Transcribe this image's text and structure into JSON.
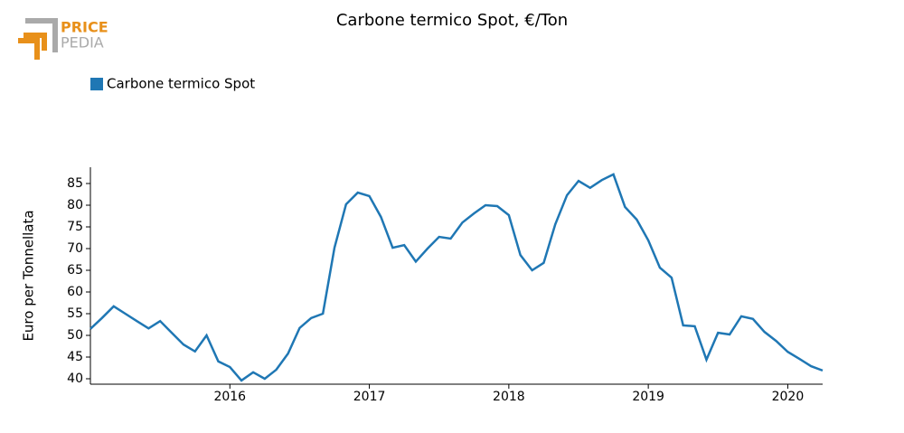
{
  "logo": {
    "top": "PRICE",
    "bottom": "PEDIA"
  },
  "chart_data": {
    "type": "line",
    "title": "Carbone termico Spot, €/Ton",
    "y_label": "Euro per Tonnellata",
    "x": [
      2015,
      2015.083,
      2015.167,
      2015.25,
      2015.333,
      2015.417,
      2015.5,
      2015.583,
      2015.667,
      2015.75,
      2015.833,
      2015.917,
      2016,
      2016.083,
      2016.167,
      2016.25,
      2016.333,
      2016.417,
      2016.5,
      2016.583,
      2016.667,
      2016.75,
      2016.833,
      2016.917,
      2017,
      2017.083,
      2017.167,
      2017.25,
      2017.333,
      2017.417,
      2017.5,
      2017.583,
      2017.667,
      2017.75,
      2017.833,
      2017.917,
      2018,
      2018.083,
      2018.167,
      2018.25,
      2018.333,
      2018.417,
      2018.5,
      2018.583,
      2018.667,
      2018.75,
      2018.833,
      2018.917,
      2019,
      2019.083,
      2019.167,
      2019.25,
      2019.333,
      2019.417,
      2019.5,
      2019.583,
      2019.667,
      2019.75,
      2019.833,
      2019.917,
      2020,
      2020.083,
      2020.167,
      2020.25
    ],
    "series": [
      {
        "name": "Carbone termico Spot",
        "color": "#1f77b4",
        "values": [
          51.5,
          54,
          56.7,
          55,
          53.3,
          51.6,
          53.3,
          50.6,
          47.9,
          46.3,
          50,
          44,
          42.7,
          39.6,
          41.5,
          40,
          42.1,
          45.8,
          51.7,
          54,
          55,
          70.2,
          80.2,
          82.9,
          82.1,
          77.3,
          70.2,
          70.8,
          67,
          70,
          72.7,
          72.3,
          76,
          78.1,
          80,
          79.8,
          77.7,
          68.5,
          65,
          66.7,
          75.6,
          82.3,
          85.6,
          84,
          85.8,
          87.1,
          79.6,
          76.7,
          71.9,
          65.6,
          63.3,
          52.3,
          52.1,
          44.4,
          50.6,
          50.2,
          54.4,
          53.8,
          50.8,
          48.7,
          46.2,
          44.6,
          42.9,
          41.9
        ]
      }
    ],
    "xlim": [
      2015,
      2020.25
    ],
    "xticks": [
      2016,
      2017,
      2018,
      2019,
      2020
    ],
    "ylim": [
      38.75,
      88.75
    ],
    "yticks": [
      40,
      45,
      50,
      55,
      60,
      65,
      70,
      75,
      80,
      85
    ],
    "legend": "top-left"
  }
}
